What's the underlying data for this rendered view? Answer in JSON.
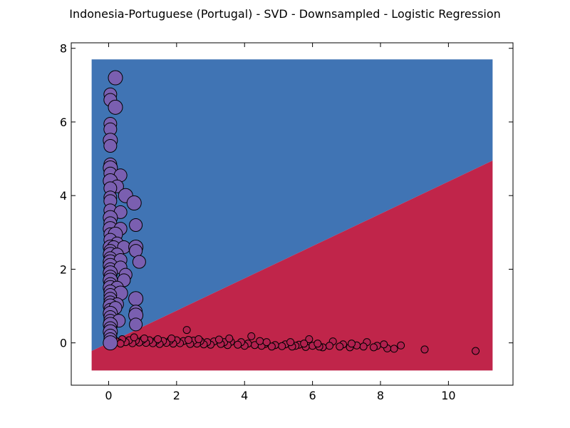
{
  "chart_data": {
    "type": "scatter",
    "title": "Indonesia-Portuguese (Portugal) - SVD - Downsampled - Logistic Regression",
    "xlabel": "",
    "ylabel": "",
    "xlim": [
      -1.1,
      11.9
    ],
    "ylim": [
      -1.15,
      8.15
    ],
    "xticks": [
      "0",
      "2",
      "4",
      "6",
      "8",
      "10"
    ],
    "yticks": [
      "0",
      "2",
      "4",
      "6",
      "8"
    ],
    "xtick_values": [
      0,
      2,
      4,
      6,
      8,
      10
    ],
    "ytick_values": [
      0,
      2,
      4,
      6,
      8
    ],
    "grid": false,
    "legend": "none",
    "colors": {
      "region_upper": "#4074b4",
      "region_lower": "#c0254a",
      "class_a_point": "#7a5fb0",
      "class_b_point": "#b1204e",
      "edge": "#000000"
    },
    "decision_regions": {
      "x_range": [
        -0.5,
        11.3
      ],
      "y_range": [
        -0.75,
        7.7
      ],
      "boundary_line": [
        [
          -0.5,
          -0.22
        ],
        [
          11.3,
          4.95
        ]
      ]
    },
    "series": [
      {
        "class": "upper",
        "points": [
          [
            0.2,
            7.2
          ],
          [
            0.05,
            6.75
          ],
          [
            0.05,
            6.6
          ],
          [
            0.2,
            6.4
          ],
          [
            0.05,
            5.95
          ],
          [
            0.05,
            5.8
          ],
          [
            0.05,
            5.5
          ],
          [
            0.05,
            5.35
          ],
          [
            0.05,
            4.85
          ],
          [
            0.05,
            4.75
          ],
          [
            0.05,
            4.6
          ],
          [
            0.35,
            4.55
          ],
          [
            0.05,
            4.4
          ],
          [
            0.25,
            4.25
          ],
          [
            0.05,
            4.2
          ],
          [
            0.5,
            4.0
          ],
          [
            0.05,
            3.95
          ],
          [
            0.05,
            3.85
          ],
          [
            0.75,
            3.8
          ],
          [
            0.05,
            3.6
          ],
          [
            0.35,
            3.55
          ],
          [
            0.05,
            3.4
          ],
          [
            0.05,
            3.25
          ],
          [
            0.8,
            3.2
          ],
          [
            0.05,
            3.1
          ],
          [
            0.35,
            3.1
          ],
          [
            0.05,
            2.95
          ],
          [
            0.2,
            2.95
          ],
          [
            0.05,
            2.8
          ],
          [
            0.25,
            2.7
          ],
          [
            0.05,
            2.6
          ],
          [
            0.15,
            2.6
          ],
          [
            0.45,
            2.6
          ],
          [
            0.8,
            2.6
          ],
          [
            0.05,
            2.5
          ],
          [
            0.8,
            2.5
          ],
          [
            0.05,
            2.4
          ],
          [
            0.25,
            2.4
          ],
          [
            0.05,
            2.3
          ],
          [
            0.05,
            2.2
          ],
          [
            0.35,
            2.25
          ],
          [
            0.9,
            2.2
          ],
          [
            0.05,
            2.1
          ],
          [
            0.05,
            2.0
          ],
          [
            0.35,
            2.05
          ],
          [
            0.05,
            1.9
          ],
          [
            0.5,
            1.85
          ],
          [
            0.05,
            1.8
          ],
          [
            0.05,
            1.7
          ],
          [
            0.45,
            1.7
          ],
          [
            0.05,
            1.6
          ],
          [
            0.05,
            1.5
          ],
          [
            0.25,
            1.5
          ],
          [
            0.05,
            1.4
          ],
          [
            0.35,
            1.35
          ],
          [
            0.05,
            1.3
          ],
          [
            0.05,
            1.2
          ],
          [
            0.8,
            1.2
          ],
          [
            0.05,
            1.1
          ],
          [
            0.25,
            1.05
          ],
          [
            0.05,
            1.0
          ],
          [
            0.05,
            0.9
          ],
          [
            0.2,
            0.95
          ],
          [
            0.05,
            0.8
          ],
          [
            0.8,
            0.85
          ],
          [
            0.05,
            0.7
          ],
          [
            0.8,
            0.75
          ],
          [
            0.05,
            0.6
          ],
          [
            0.3,
            0.6
          ],
          [
            0.05,
            0.5
          ],
          [
            0.8,
            0.5
          ],
          [
            0.05,
            0.4
          ],
          [
            0.05,
            0.3
          ],
          [
            0.05,
            0.2
          ],
          [
            0.05,
            0.1
          ],
          [
            0.05,
            0.0
          ]
        ]
      },
      {
        "class": "lower",
        "points": [
          [
            2.3,
            0.35
          ],
          [
            4.2,
            0.18
          ],
          [
            5.9,
            0.1
          ],
          [
            6.6,
            0.04
          ],
          [
            7.6,
            0.02
          ],
          [
            9.3,
            -0.18
          ],
          [
            10.8,
            -0.22
          ],
          [
            8.6,
            -0.07
          ],
          [
            8.4,
            -0.16
          ],
          [
            8.2,
            -0.15
          ],
          [
            8.1,
            -0.04
          ],
          [
            7.9,
            -0.08
          ],
          [
            7.8,
            -0.12
          ],
          [
            7.5,
            -0.1
          ],
          [
            7.3,
            -0.07
          ],
          [
            7.1,
            -0.12
          ],
          [
            6.9,
            -0.04
          ],
          [
            6.8,
            -0.1
          ],
          [
            6.5,
            -0.08
          ],
          [
            6.3,
            -0.12
          ],
          [
            6.2,
            -0.1
          ],
          [
            6.0,
            -0.08
          ],
          [
            5.8,
            -0.11
          ],
          [
            5.6,
            -0.05
          ],
          [
            5.5,
            -0.08
          ],
          [
            5.4,
            -0.1
          ],
          [
            5.2,
            -0.04
          ],
          [
            5.1,
            -0.09
          ],
          [
            4.9,
            -0.06
          ],
          [
            4.8,
            -0.1
          ],
          [
            4.6,
            -0.03
          ],
          [
            4.5,
            -0.08
          ],
          [
            4.3,
            -0.06
          ],
          [
            4.1,
            -0.02
          ],
          [
            4.0,
            -0.08
          ],
          [
            3.9,
            0.02
          ],
          [
            3.8,
            -0.05
          ],
          [
            3.6,
            0.03
          ],
          [
            3.5,
            -0.06
          ],
          [
            3.4,
            0.02
          ],
          [
            3.3,
            -0.03
          ],
          [
            3.1,
            0.04
          ],
          [
            3.0,
            -0.05
          ],
          [
            2.9,
            0.02
          ],
          [
            2.8,
            -0.04
          ],
          [
            2.7,
            0.05
          ],
          [
            2.6,
            -0.02
          ],
          [
            2.5,
            0.06
          ],
          [
            2.4,
            -0.03
          ],
          [
            2.2,
            0.05
          ],
          [
            2.1,
            -0.01
          ],
          [
            2.0,
            0.07
          ],
          [
            1.9,
            -0.02
          ],
          [
            1.8,
            0.06
          ],
          [
            1.7,
            0.0
          ],
          [
            1.6,
            0.05
          ],
          [
            1.5,
            -0.03
          ],
          [
            1.4,
            0.06
          ],
          [
            1.3,
            -0.01
          ],
          [
            1.2,
            0.07
          ],
          [
            1.1,
            0.0
          ],
          [
            1.0,
            0.08
          ],
          [
            0.9,
            0.01
          ],
          [
            0.8,
            0.06
          ],
          [
            0.7,
            -0.01
          ],
          [
            0.6,
            0.07
          ],
          [
            0.5,
            0.02
          ],
          [
            0.4,
            0.1
          ],
          [
            0.3,
            0.01
          ],
          [
            0.2,
            0.06
          ],
          [
            0.1,
            0.0
          ],
          [
            0.35,
            -0.02
          ],
          [
            1.45,
            0.1
          ],
          [
            2.35,
            0.08
          ],
          [
            3.25,
            0.09
          ],
          [
            4.45,
            0.05
          ],
          [
            5.35,
            0.02
          ],
          [
            6.15,
            -0.02
          ],
          [
            7.15,
            -0.02
          ],
          [
            0.75,
            0.15
          ],
          [
            1.05,
            0.12
          ],
          [
            1.85,
            0.12
          ],
          [
            2.65,
            0.1
          ],
          [
            3.55,
            0.12
          ],
          [
            4.65,
            0.02
          ],
          [
            5.75,
            -0.02
          ]
        ]
      }
    ]
  }
}
